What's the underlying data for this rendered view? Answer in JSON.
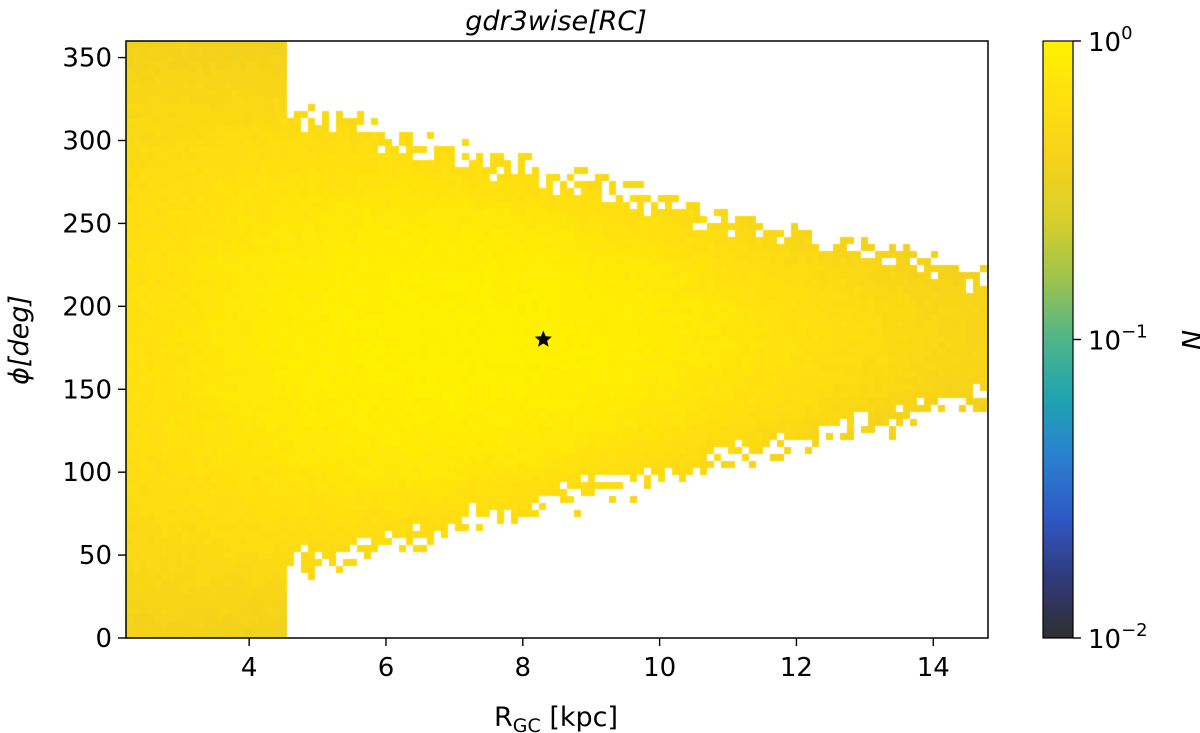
{
  "chart_data": {
    "type": "heatmap",
    "title": "gdr3wise[RC]",
    "xlabel": {
      "main": "R",
      "sub": "GC",
      "rest": " [kpc]"
    },
    "ylabel": {
      "sym": "ϕ",
      "rest": "[deg]"
    },
    "xlim": [
      2.2,
      14.8
    ],
    "ylim": [
      0,
      360
    ],
    "xticks": [
      4,
      6,
      8,
      10,
      12,
      14
    ],
    "yticks": [
      0,
      50,
      100,
      150,
      200,
      250,
      300,
      350
    ],
    "colorbar": {
      "label": "N",
      "scale": "log",
      "range": [
        0.01,
        1
      ],
      "ticks": [
        {
          "base": "10",
          "exp": "0",
          "value": 1
        },
        {
          "base": "10",
          "exp": "−1",
          "value": 0.1
        },
        {
          "base": "10",
          "exp": "−2",
          "value": 0.01
        }
      ],
      "colormap": [
        "#2f2f2f",
        "#303a7a",
        "#2f58c4",
        "#2a7fd0",
        "#1fa3b0",
        "#4fb58a",
        "#9cc34e",
        "#d8cf2a",
        "#f5d21a",
        "#ffdf10",
        "#fff200"
      ]
    },
    "marker": {
      "symbol": "star",
      "x": 8.3,
      "y": 180,
      "color": "#000000"
    },
    "description_density": {
      "ridge_phi": 180,
      "peak_R_range": [
        5.5,
        8.5
      ],
      "background_color": "#2f2f2f",
      "empty_color": "#ffffff"
    }
  }
}
